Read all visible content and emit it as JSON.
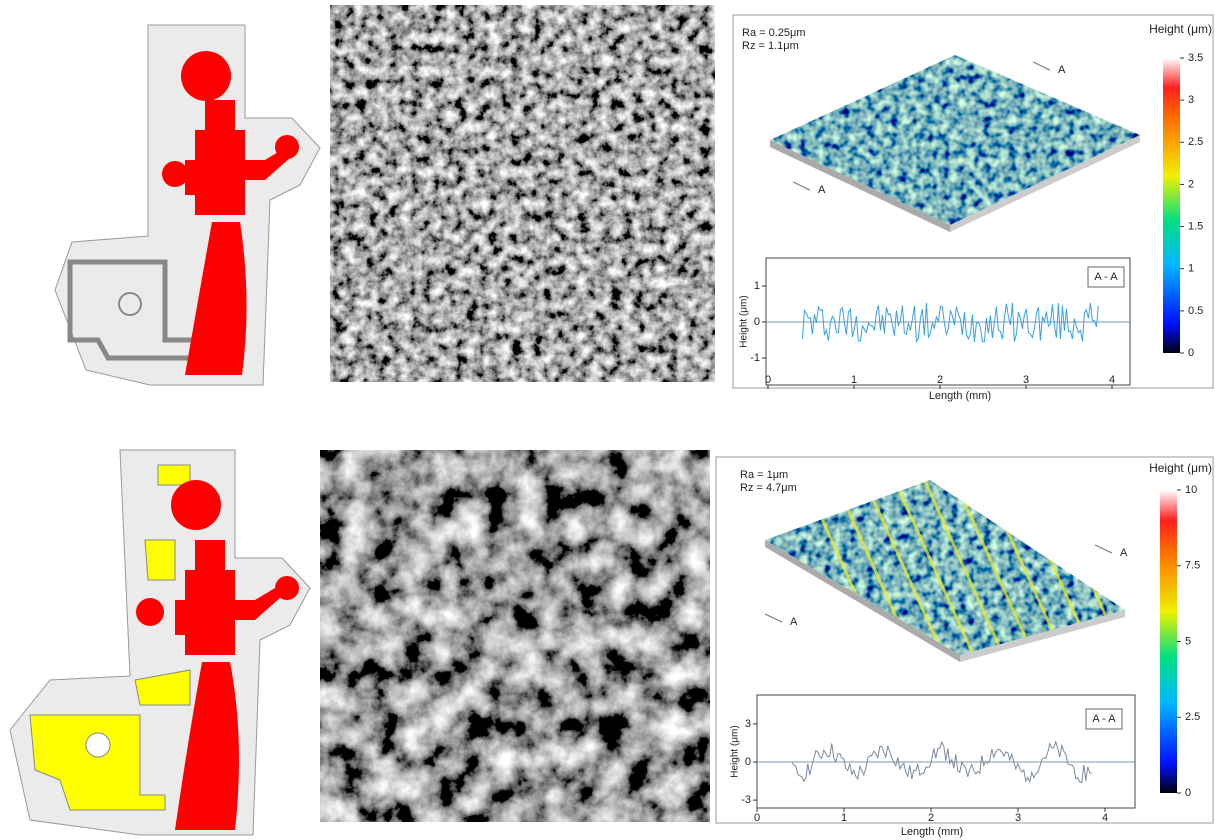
{
  "panels": [
    {
      "roughness": [
        "Ra = 0.25μm",
        "Rz = 1.1μm"
      ],
      "colorbar": {
        "title": "Height (μm)",
        "ticks": [
          3.5,
          3,
          2.5,
          2,
          1.5,
          1,
          0.5,
          0
        ]
      },
      "section_labels": [
        "A",
        "A"
      ],
      "profile": {
        "label": "A - A",
        "y_axis": "Height (μm)",
        "x_axis": "Length (mm)",
        "x_ticks": [
          0,
          1,
          2,
          3,
          4
        ],
        "y_ticks": [
          1,
          0,
          -1
        ]
      }
    },
    {
      "roughness": [
        "Ra = 1μm",
        "Rz = 4.7μm"
      ],
      "colorbar": {
        "title": "Height (μm)",
        "ticks": [
          10,
          7.5,
          5,
          2.5,
          0
        ]
      },
      "section_labels": [
        "A",
        "A"
      ],
      "profile": {
        "label": "A - A",
        "y_axis": "Height (μm)",
        "x_axis": "Length (mm)",
        "x_ticks": [
          0,
          1,
          2,
          3,
          4
        ],
        "y_ticks": [
          3,
          0,
          -3
        ]
      }
    }
  ]
}
